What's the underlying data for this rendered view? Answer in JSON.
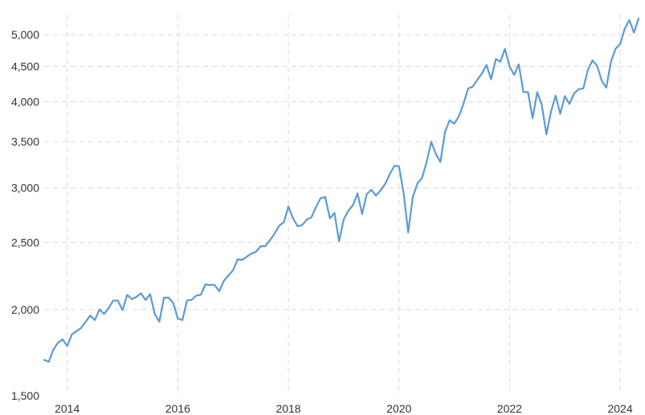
{
  "chart_data": {
    "type": "line",
    "title": "",
    "xlabel": "",
    "ylabel": "",
    "y_scale": "log",
    "grid": true,
    "legend": "none",
    "x_ticks": [
      "2014",
      "2016",
      "2018",
      "2020",
      "2022",
      "2024"
    ],
    "y_ticks": [
      1500,
      2000,
      2500,
      3000,
      3500,
      4000,
      4500,
      5000
    ],
    "y_tick_labels": [
      "1,500",
      "2,000",
      "2,500",
      "3,000",
      "3,500",
      "4,000",
      "4,500",
      "5,000"
    ],
    "xlim": [
      "2013-08",
      "2024-05"
    ],
    "ylim": [
      1500,
      5350
    ],
    "colors": {
      "series": "#5b9bd5",
      "grid": "#d9d9d9",
      "text": "#333333"
    },
    "series": [
      {
        "points": [
          [
            "2013-08",
            1690
          ],
          [
            "2013-09",
            1680
          ],
          [
            "2013-10",
            1750
          ],
          [
            "2013-11",
            1790
          ],
          [
            "2013-12",
            1810
          ],
          [
            "2014-01",
            1770
          ],
          [
            "2014-02",
            1840
          ],
          [
            "2014-03",
            1860
          ],
          [
            "2014-04",
            1880
          ],
          [
            "2014-05",
            1920
          ],
          [
            "2014-06",
            1960
          ],
          [
            "2014-07",
            1930
          ],
          [
            "2014-08",
            2000
          ],
          [
            "2014-09",
            1970
          ],
          [
            "2014-10",
            2010
          ],
          [
            "2014-11",
            2060
          ],
          [
            "2014-12",
            2060
          ],
          [
            "2015-01",
            1995
          ],
          [
            "2015-02",
            2100
          ],
          [
            "2015-03",
            2070
          ],
          [
            "2015-04",
            2085
          ],
          [
            "2015-05",
            2110
          ],
          [
            "2015-06",
            2065
          ],
          [
            "2015-07",
            2105
          ],
          [
            "2015-08",
            1970
          ],
          [
            "2015-09",
            1920
          ],
          [
            "2015-10",
            2080
          ],
          [
            "2015-11",
            2080
          ],
          [
            "2015-12",
            2045
          ],
          [
            "2016-01",
            1940
          ],
          [
            "2016-02",
            1930
          ],
          [
            "2016-03",
            2060
          ],
          [
            "2016-04",
            2065
          ],
          [
            "2016-05",
            2095
          ],
          [
            "2016-06",
            2100
          ],
          [
            "2016-07",
            2175
          ],
          [
            "2016-08",
            2170
          ],
          [
            "2016-09",
            2170
          ],
          [
            "2016-10",
            2125
          ],
          [
            "2016-11",
            2200
          ],
          [
            "2016-12",
            2240
          ],
          [
            "2017-01",
            2280
          ],
          [
            "2017-02",
            2365
          ],
          [
            "2017-03",
            2360
          ],
          [
            "2017-04",
            2385
          ],
          [
            "2017-05",
            2410
          ],
          [
            "2017-06",
            2425
          ],
          [
            "2017-07",
            2470
          ],
          [
            "2017-08",
            2470
          ],
          [
            "2017-09",
            2520
          ],
          [
            "2017-10",
            2575
          ],
          [
            "2017-11",
            2645
          ],
          [
            "2017-12",
            2675
          ],
          [
            "2018-01",
            2820
          ],
          [
            "2018-02",
            2710
          ],
          [
            "2018-03",
            2640
          ],
          [
            "2018-04",
            2650
          ],
          [
            "2018-05",
            2700
          ],
          [
            "2018-06",
            2720
          ],
          [
            "2018-07",
            2815
          ],
          [
            "2018-08",
            2900
          ],
          [
            "2018-09",
            2910
          ],
          [
            "2018-10",
            2710
          ],
          [
            "2018-11",
            2760
          ],
          [
            "2018-12",
            2510
          ],
          [
            "2019-01",
            2700
          ],
          [
            "2019-02",
            2780
          ],
          [
            "2019-03",
            2830
          ],
          [
            "2019-04",
            2945
          ],
          [
            "2019-05",
            2750
          ],
          [
            "2019-06",
            2940
          ],
          [
            "2019-07",
            2980
          ],
          [
            "2019-08",
            2925
          ],
          [
            "2019-09",
            2975
          ],
          [
            "2019-10",
            3040
          ],
          [
            "2019-11",
            3140
          ],
          [
            "2019-12",
            3230
          ],
          [
            "2020-01",
            3225
          ],
          [
            "2020-02",
            2955
          ],
          [
            "2020-03",
            2585
          ],
          [
            "2020-04",
            2910
          ],
          [
            "2020-05",
            3045
          ],
          [
            "2020-06",
            3100
          ],
          [
            "2020-07",
            3270
          ],
          [
            "2020-08",
            3500
          ],
          [
            "2020-09",
            3360
          ],
          [
            "2020-10",
            3270
          ],
          [
            "2020-11",
            3620
          ],
          [
            "2020-12",
            3760
          ],
          [
            "2021-01",
            3715
          ],
          [
            "2021-02",
            3810
          ],
          [
            "2021-03",
            3970
          ],
          [
            "2021-04",
            4180
          ],
          [
            "2021-05",
            4205
          ],
          [
            "2021-06",
            4300
          ],
          [
            "2021-07",
            4395
          ],
          [
            "2021-08",
            4520
          ],
          [
            "2021-09",
            4310
          ],
          [
            "2021-10",
            4610
          ],
          [
            "2021-11",
            4570
          ],
          [
            "2021-12",
            4770
          ],
          [
            "2022-01",
            4500
          ],
          [
            "2022-02",
            4375
          ],
          [
            "2022-03",
            4530
          ],
          [
            "2022-04",
            4130
          ],
          [
            "2022-05",
            4130
          ],
          [
            "2022-06",
            3785
          ],
          [
            "2022-07",
            4130
          ],
          [
            "2022-08",
            3955
          ],
          [
            "2022-09",
            3585
          ],
          [
            "2022-10",
            3870
          ],
          [
            "2022-11",
            4080
          ],
          [
            "2022-12",
            3840
          ],
          [
            "2023-01",
            4075
          ],
          [
            "2023-02",
            3970
          ],
          [
            "2023-03",
            4110
          ],
          [
            "2023-04",
            4170
          ],
          [
            "2023-05",
            4180
          ],
          [
            "2023-06",
            4450
          ],
          [
            "2023-07",
            4590
          ],
          [
            "2023-08",
            4510
          ],
          [
            "2023-09",
            4290
          ],
          [
            "2023-10",
            4190
          ],
          [
            "2023-11",
            4570
          ],
          [
            "2023-12",
            4770
          ],
          [
            "2024-01",
            4850
          ],
          [
            "2024-02",
            5100
          ],
          [
            "2024-03",
            5250
          ],
          [
            "2024-04",
            5035
          ],
          [
            "2024-05",
            5280
          ]
        ]
      }
    ]
  }
}
